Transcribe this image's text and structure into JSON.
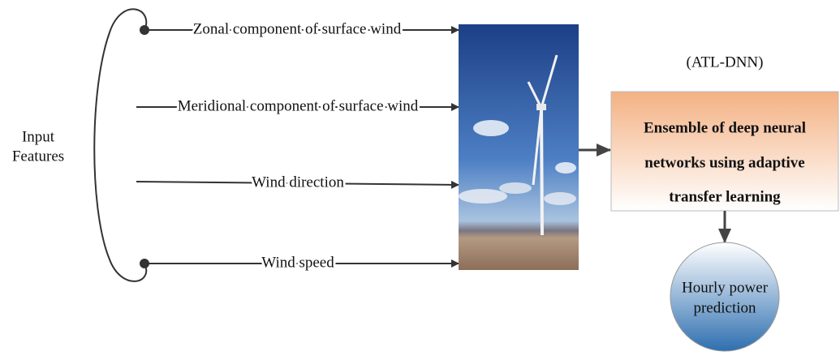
{
  "input_label": {
    "lines": [
      "Input",
      "Features"
    ]
  },
  "features": [
    "Zonal component of surface wind",
    "Meridional component of surface wind",
    "Wind direction",
    "Wind speed"
  ],
  "model": {
    "label": "(ATL-DNN)",
    "lines": [
      "Ensemble of deep neural",
      "networks using adaptive",
      "transfer learning"
    ]
  },
  "output": {
    "lines": [
      "Hourly power",
      "prediction"
    ]
  }
}
